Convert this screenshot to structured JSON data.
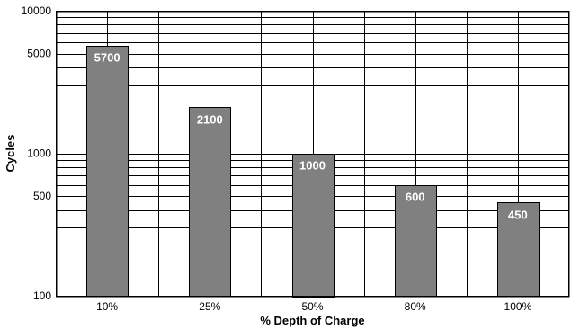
{
  "chart_data": {
    "type": "bar",
    "title": "",
    "xlabel": "% Depth of Charge",
    "ylabel": "Cycles",
    "y_scale": "log",
    "ylim": [
      100,
      10000
    ],
    "y_tick_labels": [
      "100",
      "500",
      "1000",
      "5000",
      "10000"
    ],
    "y_tick_values": [
      100,
      500,
      1000,
      5000,
      10000
    ],
    "grid": true,
    "legend": "none",
    "bar_color": "#808080",
    "categories": [
      "10%",
      "25%",
      "50%",
      "80%",
      "100%"
    ],
    "values": [
      5700,
      2100,
      1000,
      600,
      450
    ],
    "data_labels": [
      "5700",
      "2100",
      "1000",
      "600",
      "450"
    ]
  }
}
